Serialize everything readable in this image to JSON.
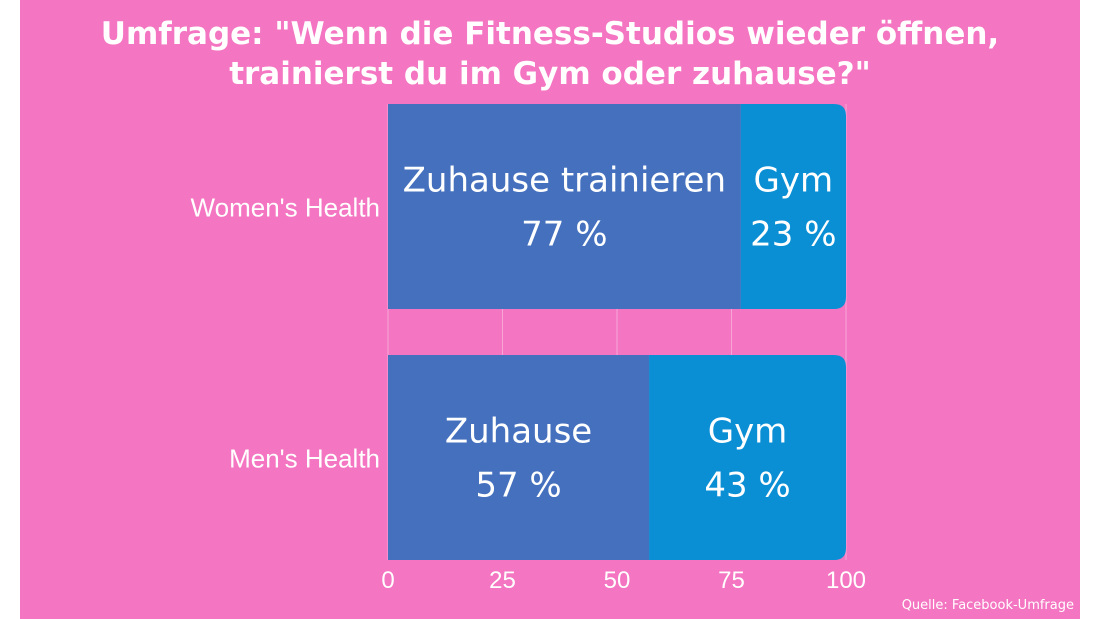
{
  "title": {
    "line1": "Umfrage: \"Wenn die Fitness-Studios wieder öffnen,",
    "line2": "trainierst du im Gym oder zuhause?\""
  },
  "source": "Quelle: Facebook-Umfrage",
  "colors": {
    "background": "#F475C1",
    "zuhause": "#4470BE",
    "gym": "#0A8FD5",
    "text": "#ffffff"
  },
  "chart_data": {
    "type": "bar",
    "orientation": "horizontal",
    "stacked": true,
    "categories": [
      "Women's Health",
      "Men's Health"
    ],
    "series": [
      {
        "values": [
          77,
          57
        ],
        "labels": [
          [
            "Zuhause trainieren",
            "77 %"
          ],
          [
            "Zuhause",
            "57 %"
          ]
        ]
      },
      {
        "values": [
          23,
          43
        ],
        "labels": [
          [
            "Gym",
            "23 %"
          ],
          [
            "Gym",
            "43 %"
          ]
        ]
      }
    ],
    "xlim": [
      0,
      100
    ],
    "xticks": [
      0,
      25,
      50,
      75,
      100
    ],
    "grid": true,
    "legend": "none"
  }
}
